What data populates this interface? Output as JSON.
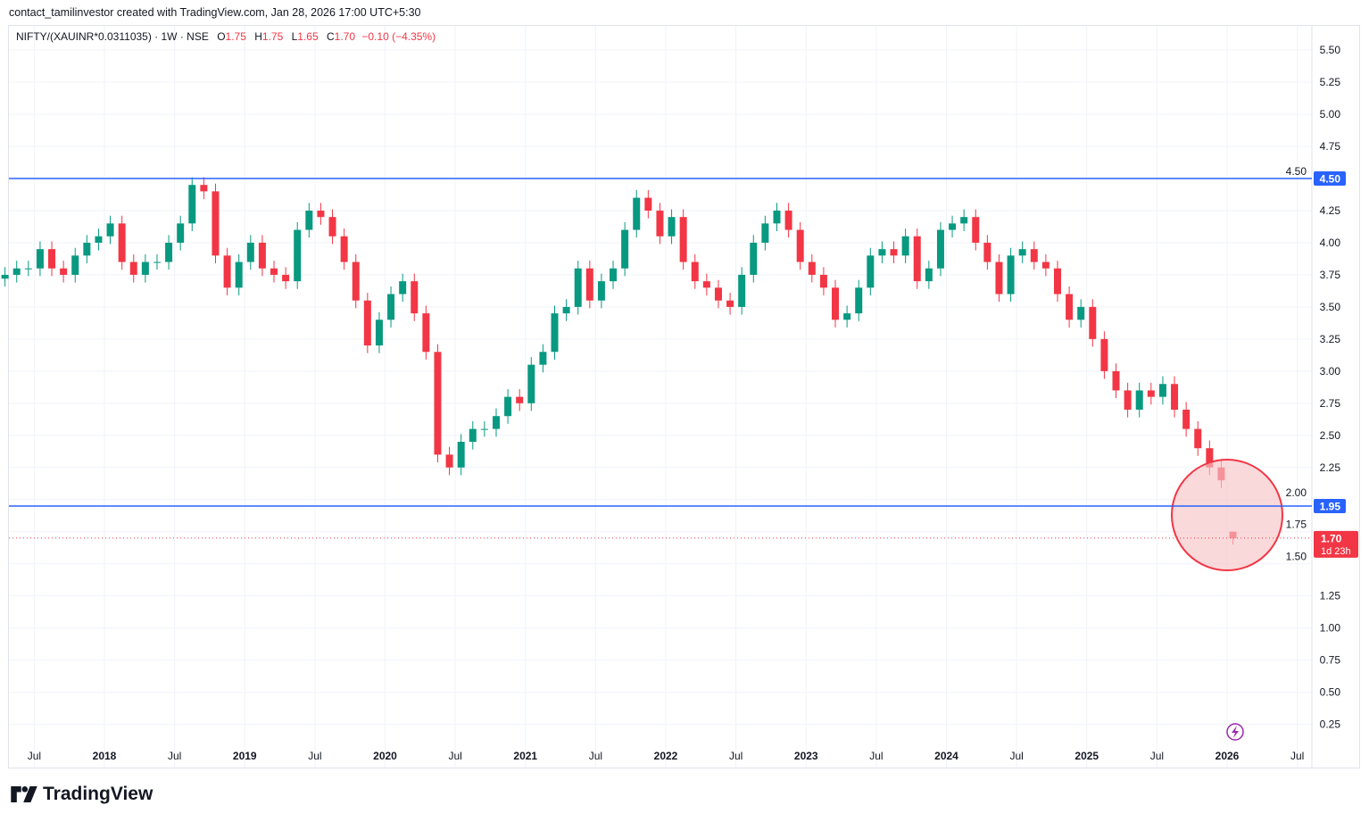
{
  "credit": "contact_tamilinvestor created with TradingView.com, Jan 28, 2026 17:00 UTC+5:30",
  "legend": {
    "symbol": "NIFTY/(XAUINR*0.0311035) · 1W · NSE",
    "o_label": "O",
    "o": "1.75",
    "h_label": "H",
    "h": "1.75",
    "l_label": "L",
    "l": "1.65",
    "c_label": "C",
    "c": "1.70",
    "change": "−0.10 (−4.35%)"
  },
  "colors": {
    "up": "#089981",
    "down": "#f23645",
    "hline": "#2962ff",
    "grid": "#f0f3fa",
    "circle_fill": "#f7c4c8",
    "circle_stroke": "#f23645"
  },
  "logo": {
    "text": "TradingView",
    "icon": "tradingview-logo-icon"
  },
  "snapshot_icon": "lightning-icon",
  "chart_data": {
    "type": "candlestick",
    "interval": "1W (shown as approximate monthly closes)",
    "start": "2017-04",
    "closes": [
      3.75,
      3.8,
      3.8,
      3.95,
      3.8,
      3.75,
      3.9,
      4.0,
      4.05,
      4.15,
      3.85,
      3.75,
      3.85,
      3.85,
      4.0,
      4.15,
      4.45,
      4.4,
      3.9,
      3.65,
      3.85,
      4.0,
      3.8,
      3.75,
      3.7,
      4.1,
      4.25,
      4.2,
      4.05,
      3.85,
      3.55,
      3.2,
      3.4,
      3.6,
      3.7,
      3.45,
      3.15,
      2.35,
      2.25,
      2.45,
      2.55,
      2.55,
      2.65,
      2.8,
      2.75,
      3.05,
      3.15,
      3.45,
      3.5,
      3.8,
      3.55,
      3.7,
      3.8,
      4.1,
      4.35,
      4.25,
      4.05,
      4.2,
      3.85,
      3.7,
      3.65,
      3.55,
      3.5,
      3.75,
      4.0,
      4.15,
      4.25,
      4.1,
      3.85,
      3.75,
      3.65,
      3.4,
      3.45,
      3.65,
      3.9,
      3.95,
      3.9,
      4.05,
      3.7,
      3.8,
      4.1,
      4.15,
      4.2,
      4.0,
      3.85,
      3.6,
      3.9,
      3.95,
      3.85,
      3.8,
      3.6,
      3.4,
      3.5,
      3.25,
      3.0,
      2.85,
      2.7,
      2.85,
      2.8,
      2.9,
      2.7,
      2.55,
      2.4,
      2.25,
      2.15,
      1.7
    ],
    "last_candle": {
      "open": 1.75,
      "high": 1.75,
      "low": 1.65,
      "close": 1.7
    },
    "ylim": [
      0.06,
      5.7
    ],
    "y_ticks": [
      "5.50",
      "5.25",
      "5.00",
      "4.75",
      "4.50",
      "4.25",
      "4.00",
      "3.75",
      "3.50",
      "3.25",
      "3.00",
      "2.75",
      "2.50",
      "2.25",
      "2.00",
      "1.75",
      "1.50",
      "1.25",
      "1.00",
      "0.75",
      "0.50",
      "0.25"
    ],
    "x_ticks": [
      {
        "label": "Jul",
        "t": 2017.5,
        "bold": false
      },
      {
        "label": "2018",
        "t": 2018,
        "bold": true
      },
      {
        "label": "Jul",
        "t": 2018.5,
        "bold": false
      },
      {
        "label": "2019",
        "t": 2019,
        "bold": true
      },
      {
        "label": "Jul",
        "t": 2019.5,
        "bold": false
      },
      {
        "label": "2020",
        "t": 2020,
        "bold": true
      },
      {
        "label": "Jul",
        "t": 2020.5,
        "bold": false
      },
      {
        "label": "2021",
        "t": 2021,
        "bold": true
      },
      {
        "label": "Jul",
        "t": 2021.5,
        "bold": false
      },
      {
        "label": "2022",
        "t": 2022,
        "bold": true
      },
      {
        "label": "Jul",
        "t": 2022.5,
        "bold": false
      },
      {
        "label": "2023",
        "t": 2023,
        "bold": true
      },
      {
        "label": "Jul",
        "t": 2023.5,
        "bold": false
      },
      {
        "label": "2024",
        "t": 2024,
        "bold": true
      },
      {
        "label": "Jul",
        "t": 2024.5,
        "bold": false
      },
      {
        "label": "2025",
        "t": 2025,
        "bold": true
      },
      {
        "label": "Jul",
        "t": 2025.5,
        "bold": false
      },
      {
        "label": "2026",
        "t": 2026,
        "bold": true
      },
      {
        "label": "Jul",
        "t": 2026.5,
        "bold": false
      }
    ],
    "horizontal_lines": [
      {
        "price": 4.5,
        "label": "4.50"
      },
      {
        "price": 1.95,
        "label": "1.95"
      }
    ],
    "last_price": {
      "label": "1.70",
      "countdown": "1d 23h"
    },
    "highlight_circle": {
      "time": "2026-01",
      "price": 1.88
    }
  }
}
